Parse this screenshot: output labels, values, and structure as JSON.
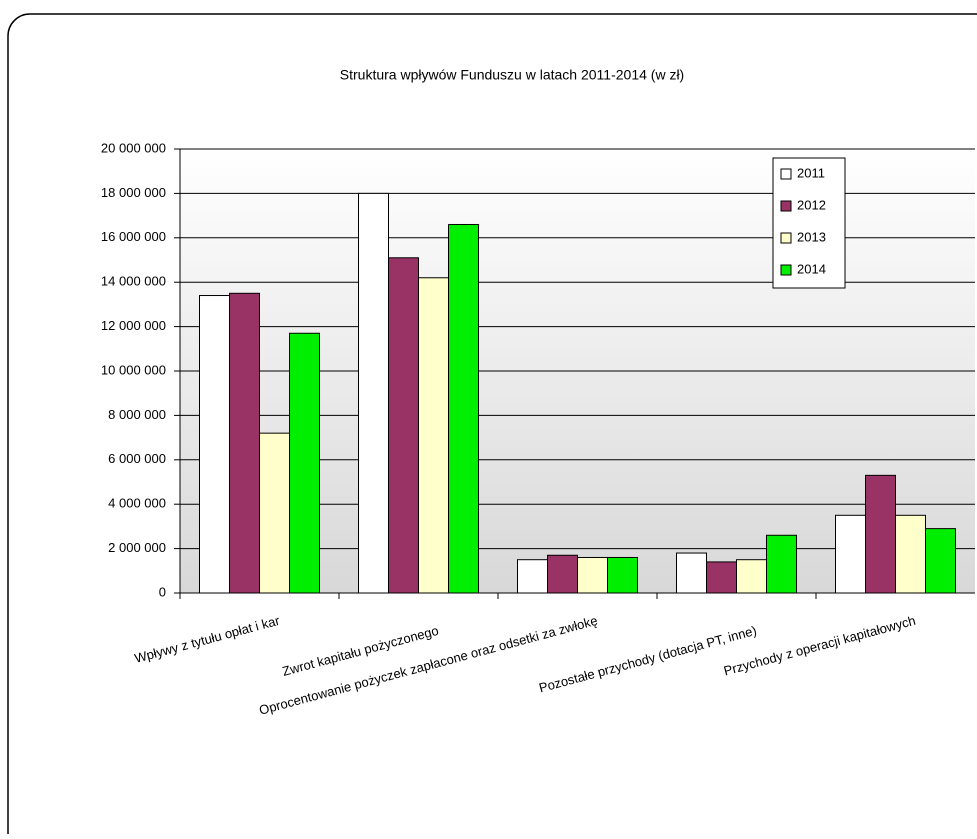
{
  "chart_data": {
    "type": "bar",
    "title": "Struktura wpływów Funduszu w latach 2011-2014 (w zł)",
    "categories": [
      "Wpływy z tytułu opłat i kar",
      "Zwrot kapitału pożyczonego",
      "Oprocentowanie pożyczek  zapłacone oraz odsetki za zwłokę",
      "Pozostałe przychody  (dotacja PT, inne)",
      "Przychody z operacji kapitałowych"
    ],
    "series": [
      {
        "name": "2011",
        "color": "#ffffff",
        "values": [
          13400000,
          18000000,
          1500000,
          1800000,
          3500000
        ]
      },
      {
        "name": "2012",
        "color": "#993366",
        "values": [
          13500000,
          15100000,
          1700000,
          1400000,
          5300000
        ]
      },
      {
        "name": "2013",
        "color": "#ffffcc",
        "values": [
          7200000,
          14200000,
          1600000,
          1500000,
          3500000
        ]
      },
      {
        "name": "2014",
        "color": "#00ee00",
        "values": [
          11700000,
          16600000,
          1600000,
          2600000,
          2900000
        ]
      }
    ],
    "ylim": [
      0,
      20000000
    ],
    "yticks": [
      0,
      {
        "value": 2000000,
        "label": "2 000 000"
      },
      {
        "value": 4000000,
        "label": "4 000 000"
      },
      {
        "value": 6000000,
        "label": "6 000 000"
      },
      {
        "value": 8000000,
        "label": "8 000 000"
      },
      {
        "value": 10000000,
        "label": "10 000 000"
      },
      {
        "value": 12000000,
        "label": "12 000 000"
      },
      {
        "value": 14000000,
        "label": "14 000 000"
      },
      {
        "value": 16000000,
        "label": "16 000 000"
      },
      {
        "value": 18000000,
        "label": "18 000 000"
      },
      {
        "value": 20000000,
        "label": "20 000 000"
      }
    ],
    "grid": true,
    "legend": "top-right"
  }
}
